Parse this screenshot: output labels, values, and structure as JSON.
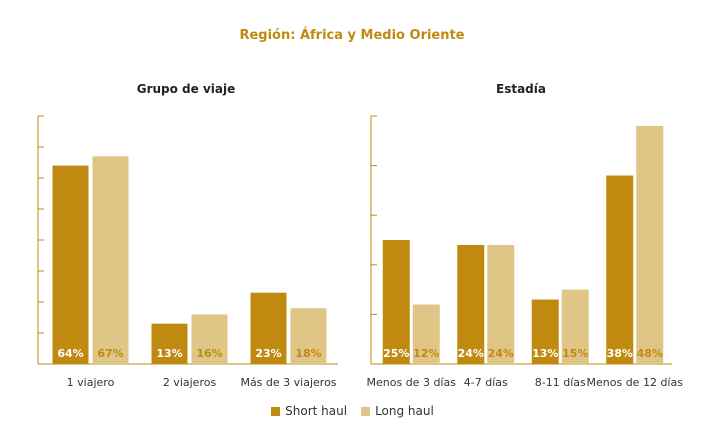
{
  "title": "Región: África y Medio Oriente",
  "colors": {
    "short": "#C08A10",
    "long": "#DFC687",
    "axis": "#C08A10",
    "title": "#C08A10"
  },
  "legend": [
    {
      "name": "Short haul",
      "color": "#C08A10"
    },
    {
      "name": "Long haul",
      "color": "#DFC687"
    }
  ],
  "chart_data": [
    {
      "type": "bar",
      "title": "Grupo de viaje",
      "categories": [
        "1 viajero",
        "2 viajeros",
        "Más de 3 viajeros"
      ],
      "ylim": [
        0,
        80
      ],
      "series": [
        {
          "name": "Short haul",
          "values": [
            64,
            13,
            23
          ]
        },
        {
          "name": "Long haul",
          "values": [
            67,
            16,
            18
          ]
        }
      ]
    },
    {
      "type": "bar",
      "title": "Estadía",
      "categories": [
        "Menos de 3 días",
        "4-7 días",
        "8-11 días",
        "Menos de 12 días"
      ],
      "ylim": [
        0,
        50
      ],
      "series": [
        {
          "name": "Short haul",
          "values": [
            25,
            24,
            13,
            38
          ]
        },
        {
          "name": "Long haul",
          "values": [
            12,
            24,
            15,
            48
          ]
        }
      ]
    }
  ]
}
